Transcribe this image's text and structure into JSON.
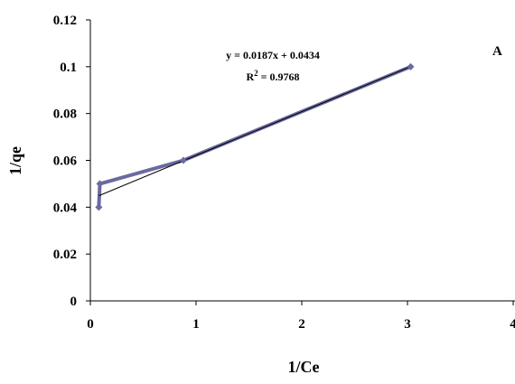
{
  "chart_data": {
    "type": "scatter",
    "xlabel": "1/Ce",
    "ylabel": "1/qe",
    "xlim": [
      0,
      4
    ],
    "ylim": [
      0,
      0.12
    ],
    "x_ticks": [
      "0",
      "1",
      "2",
      "3",
      "4"
    ],
    "y_ticks": [
      "0",
      "0.02",
      "0.04",
      "0.06",
      "0.08",
      "0.1",
      "0.12"
    ],
    "grid": false,
    "series": [
      {
        "color": "#6a6aa0",
        "marker": "diamond",
        "connected": true,
        "points": [
          {
            "x": 0.08,
            "y": 0.04
          },
          {
            "x": 0.09,
            "y": 0.05
          },
          {
            "x": 0.88,
            "y": 0.06
          },
          {
            "x": 3.03,
            "y": 0.1
          }
        ]
      }
    ],
    "trendline": {
      "color": "#000000",
      "slope": 0.0187,
      "intercept": 0.0434,
      "x_range": [
        0.08,
        3.03
      ]
    },
    "annotations": {
      "equation": "y = 0.0187x + 0.0434",
      "r2_prefix": "R",
      "r2_superscript": "2",
      "r2_suffix": " = 0.9768",
      "panel_label": "A"
    }
  }
}
